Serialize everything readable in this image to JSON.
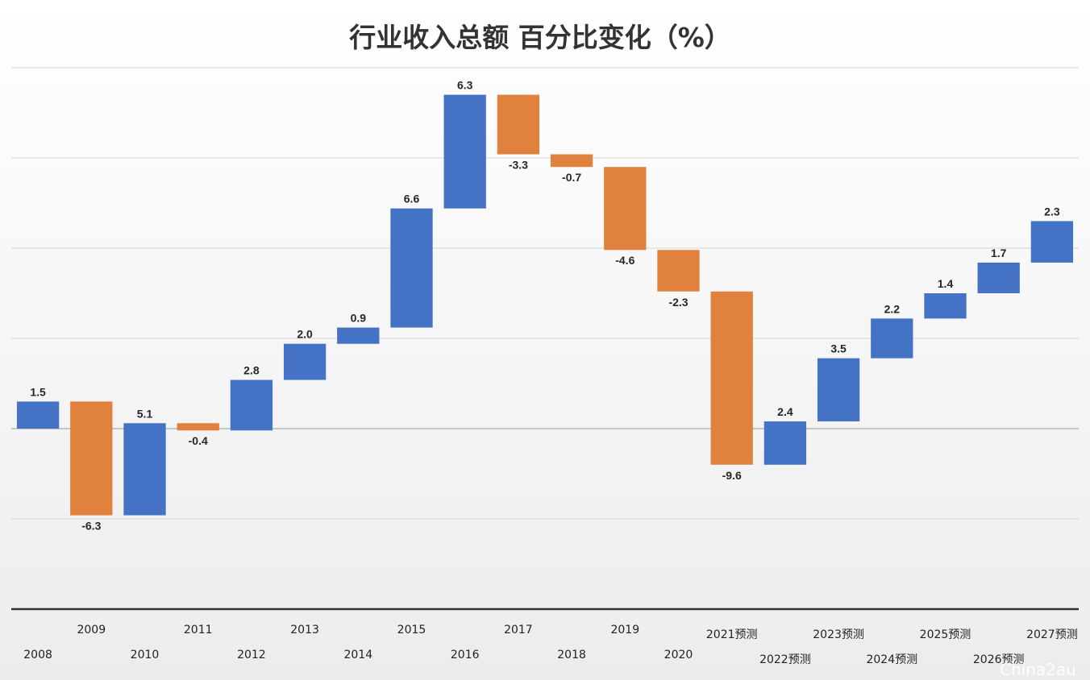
{
  "chart_data": {
    "type": "waterfall",
    "title": "行业收入总额 百分比变化（%）",
    "categories": [
      "2008",
      "2009",
      "2010",
      "2011",
      "2012",
      "2013",
      "2014",
      "2015",
      "2016",
      "2017",
      "2018",
      "2019",
      "2020",
      "2021预测",
      "2022预测",
      "2023预测",
      "2024预测",
      "2025预测",
      "2026预测",
      "2027预测"
    ],
    "values": [
      1.5,
      -6.3,
      5.1,
      -0.4,
      2.8,
      2.0,
      0.9,
      6.6,
      6.3,
      -3.3,
      -0.7,
      -4.6,
      -2.3,
      -9.6,
      2.4,
      3.5,
      2.2,
      1.4,
      1.7,
      2.3
    ],
    "value_labels": [
      "1.5",
      "-6.3",
      "5.1",
      "-0.4",
      "2.8",
      "2.0",
      "0.9",
      "6.6",
      "6.3",
      "-3.3",
      "-0.7",
      "-4.6",
      "-2.3",
      "-9.6",
      "2.4",
      "3.5",
      "2.2",
      "1.4",
      "1.7",
      "2.3"
    ],
    "colors": {
      "increase": "#4472C4",
      "decrease": "#E0813E"
    },
    "ylim": [
      -10,
      20
    ],
    "grid": true,
    "legend": "none"
  },
  "watermark": "China2au"
}
